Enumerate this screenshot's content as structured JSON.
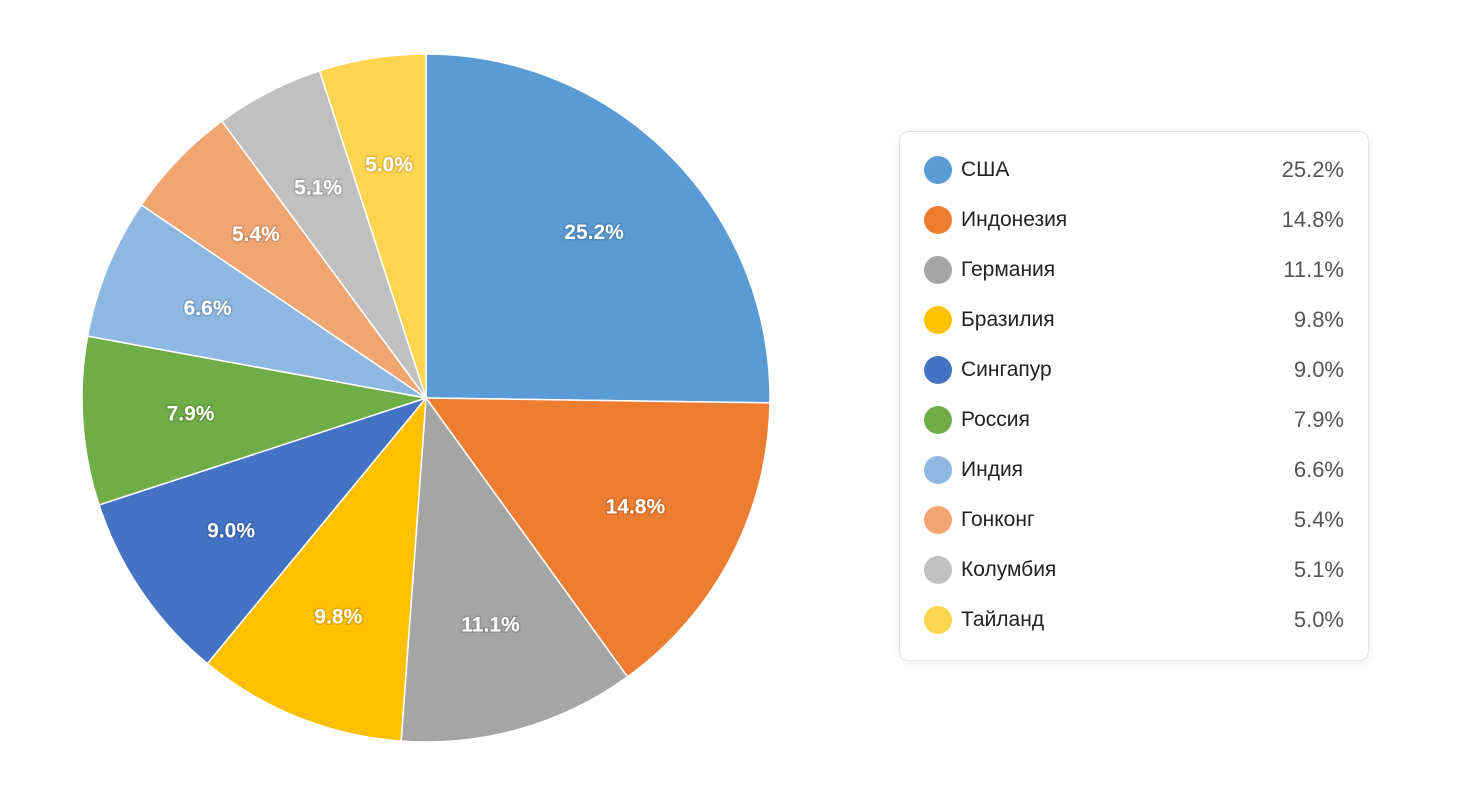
{
  "chart_data": {
    "type": "pie",
    "start_angle": "12 o'clock, clockwise",
    "legend_position": "right",
    "slices": [
      {
        "label": "США",
        "value": 25.2,
        "display": "25.2%",
        "color": "#5B9BD5"
      },
      {
        "label": "Индонезия",
        "value": 14.8,
        "display": "14.8%",
        "color": "#ED7D31"
      },
      {
        "label": "Германия",
        "value": 11.1,
        "display": "11.1%",
        "color": "#A5A5A5"
      },
      {
        "label": "Бразилия",
        "value": 9.8,
        "display": "9.8%",
        "color": "#FFC000"
      },
      {
        "label": "Сингапур",
        "value": 9.0,
        "display": "9.0%",
        "color": "#4472C4"
      },
      {
        "label": "Россия",
        "value": 7.9,
        "display": "7.9%",
        "color": "#70AD47"
      },
      {
        "label": "Индия",
        "value": 6.6,
        "display": "6.6%",
        "color": "#8EB8E1"
      },
      {
        "label": "Гонконг",
        "value": 5.4,
        "display": "5.4%",
        "color": "#F1A672"
      },
      {
        "label": "Колумбия",
        "value": 5.1,
        "display": "5.1%",
        "color": "#C0C0C0"
      },
      {
        "label": "Тайланд",
        "value": 5.0,
        "display": "5.0%",
        "color": "#FFD44F"
      }
    ]
  }
}
